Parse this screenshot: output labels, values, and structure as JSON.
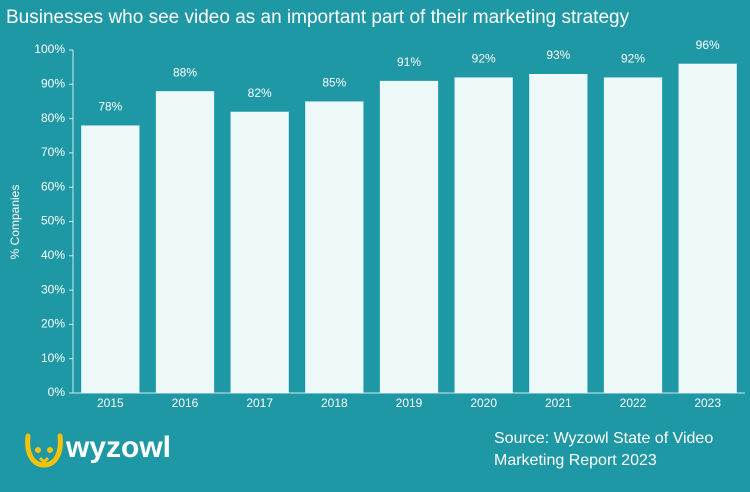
{
  "chart_data": {
    "type": "bar",
    "title": "Businesses who see video as an important part of their marketing strategy",
    "y_label": "% Companies",
    "categories": [
      "2015",
      "2016",
      "2017",
      "2018",
      "2019",
      "2020",
      "2021",
      "2022",
      "2023"
    ],
    "values": [
      78,
      88,
      82,
      85,
      91,
      92,
      93,
      92,
      96
    ],
    "value_labels": [
      "78%",
      "88%",
      "82%",
      "85%",
      "91%",
      "92%",
      "93%",
      "92%",
      "96%"
    ],
    "color": "#eef9f9",
    "ylim": [
      0,
      100
    ],
    "yticks": [
      {
        "value": 0,
        "label": "0%"
      },
      {
        "value": 10,
        "label": "10%"
      },
      {
        "value": 20,
        "label": "20%"
      },
      {
        "value": 30,
        "label": "30%"
      },
      {
        "value": 40,
        "label": "40%"
      },
      {
        "value": 50,
        "label": "50%"
      },
      {
        "value": 60,
        "label": "60%"
      },
      {
        "value": 70,
        "label": "70%"
      },
      {
        "value": 80,
        "label": "80%"
      },
      {
        "value": 90,
        "label": "90%"
      },
      {
        "value": 100,
        "label": "100%"
      }
    ],
    "grid": false
  },
  "logo": "wyzowl",
  "source": [
    "Source: Wyzowl State of Video",
    "Marketing Report 2023"
  ]
}
